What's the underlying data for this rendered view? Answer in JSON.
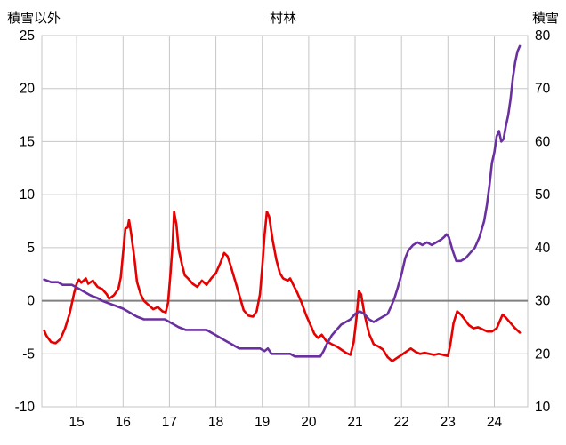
{
  "header": {
    "left_axis_title": "積雪以外",
    "chart_title": "村林",
    "right_axis_title": "積雪"
  },
  "chart_data": {
    "type": "line",
    "title": "村林",
    "grid": true,
    "legend_position": "none",
    "x_axis": {
      "min": 14.25,
      "max": 24.72,
      "ticks": [
        15,
        16,
        17,
        18,
        19,
        20,
        21,
        22,
        23,
        24
      ]
    },
    "left_axis": {
      "label": "積雪以外",
      "min": -10,
      "max": 25,
      "ticks": [
        -10,
        -5,
        0,
        5,
        10,
        15,
        20,
        25
      ]
    },
    "right_axis": {
      "label": "積雪",
      "min": 10,
      "max": 80,
      "ticks": [
        10,
        20,
        30,
        40,
        50,
        60,
        70,
        80
      ]
    },
    "zero_line_left_value": 0,
    "colors": {
      "grid": "#c6c6c6",
      "zero_line": "#808080",
      "series_left": "#e60000",
      "series_right": "#6a30a0",
      "text": "#000000"
    },
    "series": [
      {
        "name": "積雪以外",
        "axis": "left",
        "color": "#e60000",
        "points": [
          [
            14.3,
            -2.8
          ],
          [
            14.35,
            -3.3
          ],
          [
            14.45,
            -3.9
          ],
          [
            14.55,
            -4.0
          ],
          [
            14.65,
            -3.6
          ],
          [
            14.75,
            -2.6
          ],
          [
            14.85,
            -1.2
          ],
          [
            14.95,
            0.8
          ],
          [
            15.0,
            1.6
          ],
          [
            15.05,
            2.0
          ],
          [
            15.1,
            1.7
          ],
          [
            15.2,
            2.1
          ],
          [
            15.25,
            1.6
          ],
          [
            15.35,
            1.9
          ],
          [
            15.45,
            1.3
          ],
          [
            15.55,
            1.1
          ],
          [
            15.65,
            0.6
          ],
          [
            15.7,
            0.2
          ],
          [
            15.8,
            0.5
          ],
          [
            15.9,
            1.1
          ],
          [
            15.95,
            2.2
          ],
          [
            16.0,
            4.5
          ],
          [
            16.05,
            6.8
          ],
          [
            16.1,
            6.9
          ],
          [
            16.13,
            7.6
          ],
          [
            16.18,
            6.2
          ],
          [
            16.25,
            3.8
          ],
          [
            16.3,
            1.8
          ],
          [
            16.38,
            0.6
          ],
          [
            16.45,
            0.0
          ],
          [
            16.55,
            -0.4
          ],
          [
            16.65,
            -0.8
          ],
          [
            16.75,
            -0.6
          ],
          [
            16.85,
            -1.0
          ],
          [
            16.92,
            -1.1
          ],
          [
            16.97,
            -0.2
          ],
          [
            17.02,
            2.5
          ],
          [
            17.07,
            5.5
          ],
          [
            17.1,
            8.4
          ],
          [
            17.15,
            7.2
          ],
          [
            17.2,
            4.8
          ],
          [
            17.27,
            3.4
          ],
          [
            17.33,
            2.4
          ],
          [
            17.4,
            2.1
          ],
          [
            17.5,
            1.6
          ],
          [
            17.6,
            1.3
          ],
          [
            17.7,
            1.9
          ],
          [
            17.8,
            1.5
          ],
          [
            17.9,
            2.1
          ],
          [
            18.0,
            2.6
          ],
          [
            18.1,
            3.6
          ],
          [
            18.18,
            4.5
          ],
          [
            18.25,
            4.2
          ],
          [
            18.32,
            3.3
          ],
          [
            18.42,
            1.8
          ],
          [
            18.52,
            0.3
          ],
          [
            18.6,
            -0.9
          ],
          [
            18.7,
            -1.4
          ],
          [
            18.8,
            -1.5
          ],
          [
            18.88,
            -1.0
          ],
          [
            18.95,
            0.6
          ],
          [
            19.0,
            3.2
          ],
          [
            19.05,
            6.2
          ],
          [
            19.1,
            8.4
          ],
          [
            19.15,
            7.9
          ],
          [
            19.22,
            5.8
          ],
          [
            19.3,
            3.9
          ],
          [
            19.38,
            2.6
          ],
          [
            19.45,
            2.1
          ],
          [
            19.55,
            1.9
          ],
          [
            19.6,
            2.1
          ],
          [
            19.68,
            1.4
          ],
          [
            19.75,
            0.8
          ],
          [
            19.85,
            -0.2
          ],
          [
            19.95,
            -1.4
          ],
          [
            20.05,
            -2.4
          ],
          [
            20.12,
            -3.1
          ],
          [
            20.2,
            -3.5
          ],
          [
            20.28,
            -3.2
          ],
          [
            20.38,
            -3.8
          ],
          [
            20.5,
            -4.1
          ],
          [
            20.6,
            -4.3
          ],
          [
            20.7,
            -4.6
          ],
          [
            20.8,
            -4.9
          ],
          [
            20.9,
            -5.1
          ],
          [
            20.97,
            -3.9
          ],
          [
            21.03,
            -1.6
          ],
          [
            21.08,
            0.9
          ],
          [
            21.13,
            0.6
          ],
          [
            21.2,
            -1.2
          ],
          [
            21.3,
            -3.1
          ],
          [
            21.4,
            -4.1
          ],
          [
            21.5,
            -4.3
          ],
          [
            21.6,
            -4.6
          ],
          [
            21.7,
            -5.3
          ],
          [
            21.8,
            -5.7
          ],
          [
            21.9,
            -5.4
          ],
          [
            22.0,
            -5.1
          ],
          [
            22.1,
            -4.8
          ],
          [
            22.2,
            -4.5
          ],
          [
            22.3,
            -4.8
          ],
          [
            22.4,
            -5.0
          ],
          [
            22.5,
            -4.9
          ],
          [
            22.6,
            -5.0
          ],
          [
            22.7,
            -5.1
          ],
          [
            22.8,
            -5.0
          ],
          [
            22.9,
            -5.1
          ],
          [
            23.0,
            -5.2
          ],
          [
            23.05,
            -4.2
          ],
          [
            23.12,
            -2.1
          ],
          [
            23.2,
            -1.0
          ],
          [
            23.28,
            -1.3
          ],
          [
            23.35,
            -1.7
          ],
          [
            23.45,
            -2.3
          ],
          [
            23.55,
            -2.6
          ],
          [
            23.65,
            -2.5
          ],
          [
            23.75,
            -2.7
          ],
          [
            23.85,
            -2.9
          ],
          [
            23.95,
            -2.9
          ],
          [
            24.05,
            -2.6
          ],
          [
            24.12,
            -1.9
          ],
          [
            24.18,
            -1.3
          ],
          [
            24.25,
            -1.6
          ],
          [
            24.35,
            -2.1
          ],
          [
            24.45,
            -2.6
          ],
          [
            24.55,
            -3.0
          ]
        ]
      },
      {
        "name": "積雪",
        "axis": "right",
        "color": "#6a30a0",
        "points": [
          [
            14.3,
            34
          ],
          [
            14.45,
            33.5
          ],
          [
            14.6,
            33.5
          ],
          [
            14.7,
            33
          ],
          [
            14.9,
            33
          ],
          [
            15.0,
            32.5
          ],
          [
            15.1,
            32
          ],
          [
            15.2,
            31.5
          ],
          [
            15.3,
            31
          ],
          [
            15.45,
            30.5
          ],
          [
            15.55,
            30
          ],
          [
            15.7,
            29.5
          ],
          [
            15.85,
            29
          ],
          [
            16.0,
            28.5
          ],
          [
            16.1,
            28
          ],
          [
            16.2,
            27.5
          ],
          [
            16.3,
            27
          ],
          [
            16.45,
            26.5
          ],
          [
            16.7,
            26.5
          ],
          [
            16.9,
            26.5
          ],
          [
            17.0,
            26
          ],
          [
            17.1,
            25.5
          ],
          [
            17.2,
            25
          ],
          [
            17.35,
            24.5
          ],
          [
            17.6,
            24.5
          ],
          [
            17.8,
            24.5
          ],
          [
            17.9,
            24
          ],
          [
            18.0,
            23.5
          ],
          [
            18.1,
            23
          ],
          [
            18.2,
            22.5
          ],
          [
            18.3,
            22
          ],
          [
            18.4,
            21.5
          ],
          [
            18.5,
            21
          ],
          [
            18.75,
            21
          ],
          [
            18.95,
            21
          ],
          [
            19.05,
            20.5
          ],
          [
            19.12,
            21
          ],
          [
            19.2,
            20
          ],
          [
            19.4,
            20
          ],
          [
            19.6,
            20
          ],
          [
            19.7,
            19.5
          ],
          [
            19.9,
            19.5
          ],
          [
            20.1,
            19.5
          ],
          [
            20.25,
            19.5
          ],
          [
            20.32,
            20.5
          ],
          [
            20.4,
            22
          ],
          [
            20.5,
            23.5
          ],
          [
            20.6,
            24.5
          ],
          [
            20.7,
            25.5
          ],
          [
            20.8,
            26
          ],
          [
            20.9,
            26.5
          ],
          [
            21.0,
            27.5
          ],
          [
            21.1,
            28
          ],
          [
            21.2,
            27.5
          ],
          [
            21.3,
            26.5
          ],
          [
            21.4,
            26
          ],
          [
            21.5,
            26.5
          ],
          [
            21.6,
            27
          ],
          [
            21.7,
            27.5
          ],
          [
            21.78,
            29
          ],
          [
            21.85,
            30.5
          ],
          [
            21.92,
            32.5
          ],
          [
            22.0,
            35
          ],
          [
            22.08,
            38
          ],
          [
            22.15,
            39.5
          ],
          [
            22.25,
            40.5
          ],
          [
            22.35,
            41
          ],
          [
            22.45,
            40.5
          ],
          [
            22.55,
            41
          ],
          [
            22.65,
            40.5
          ],
          [
            22.75,
            41
          ],
          [
            22.85,
            41.5
          ],
          [
            22.92,
            42
          ],
          [
            22.97,
            42.5
          ],
          [
            23.02,
            42
          ],
          [
            23.1,
            39.5
          ],
          [
            23.18,
            37.5
          ],
          [
            23.28,
            37.5
          ],
          [
            23.38,
            38
          ],
          [
            23.48,
            39
          ],
          [
            23.58,
            40
          ],
          [
            23.68,
            42
          ],
          [
            23.78,
            45
          ],
          [
            23.84,
            48
          ],
          [
            23.9,
            52
          ],
          [
            23.95,
            56
          ],
          [
            24.0,
            58
          ],
          [
            24.05,
            61
          ],
          [
            24.1,
            62
          ],
          [
            24.15,
            60
          ],
          [
            24.2,
            60.5
          ],
          [
            24.25,
            63
          ],
          [
            24.3,
            65
          ],
          [
            24.35,
            68
          ],
          [
            24.4,
            72
          ],
          [
            24.45,
            75
          ],
          [
            24.5,
            77
          ],
          [
            24.55,
            78
          ]
        ]
      }
    ]
  }
}
